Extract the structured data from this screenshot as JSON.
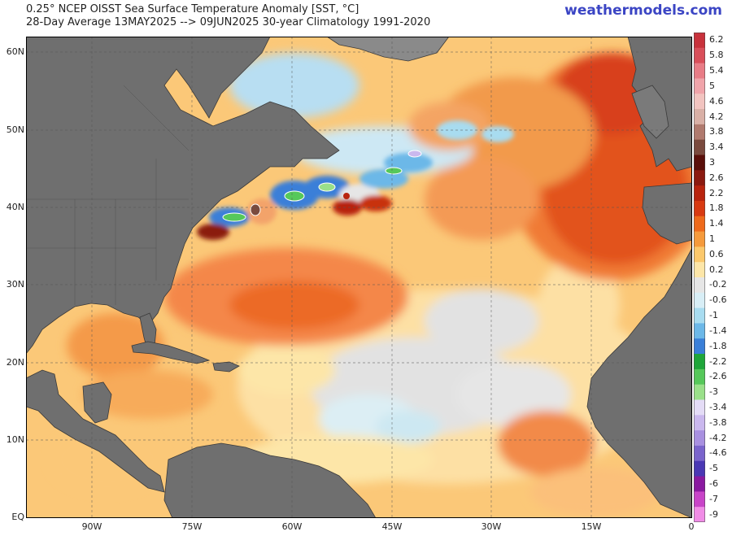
{
  "header": {
    "title_line1": "0.25° NCEP OISST Sea Surface Temperature Anomaly [SST, °C]",
    "title_line2": "28-Day Average 13MAY2025 --> 09JUN2025   30-year Climatology 1991-2020",
    "brand": "weathermodels.com"
  },
  "axes": {
    "lat_labels": [
      "60N",
      "50N",
      "40N",
      "30N",
      "20N",
      "10N",
      "EQ"
    ],
    "lon_labels": [
      "90W",
      "75W",
      "60W",
      "45W",
      "30W",
      "15W",
      "0"
    ]
  },
  "colorbar": {
    "labels": [
      "6.2",
      "5.8",
      "5.4",
      "5",
      "4.6",
      "4.2",
      "3.8",
      "3.4",
      "3",
      "2.6",
      "2.2",
      "1.8",
      "1.4",
      "1",
      "0.6",
      "0.2",
      "-0.2",
      "-0.6",
      "-1",
      "-1.4",
      "-1.8",
      "-2.2",
      "-2.6",
      "-3",
      "-3.4",
      "-3.8",
      "-4.2",
      "-4.6",
      "-5",
      "-6",
      "-7",
      "-9"
    ],
    "colors": [
      "#c8323c",
      "#d94f5a",
      "#e87c86",
      "#f0a4aa",
      "#f2c4c0",
      "#d9b0a6",
      "#b07a6e",
      "#7a4a3e",
      "#5a0f0a",
      "#8b1a10",
      "#b8240e",
      "#d83a12",
      "#ee6a1c",
      "#f59a3c",
      "#fbc86c",
      "#fde6a8",
      "#e6e6e6",
      "#d8eef6",
      "#a8dcf0",
      "#6cb8e8",
      "#3a7fd8",
      "#1fa63a",
      "#56c85a",
      "#9ae08a",
      "#e4dcf6",
      "#cab8ee",
      "#a890e0",
      "#7a64cc",
      "#4a38b4",
      "#8a1aa0",
      "#c844c8",
      "#f08ce6"
    ]
  }
}
